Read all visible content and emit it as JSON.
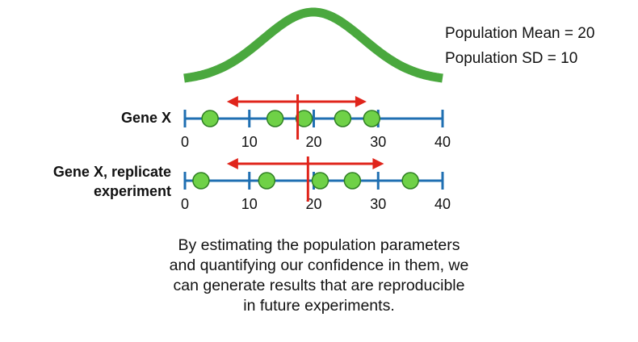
{
  "stats": {
    "mean_label": "Population Mean = 20",
    "sd_label": "Population SD = 10"
  },
  "rows": [
    {
      "label_lines": [
        "Gene X"
      ],
      "tick_labels": [
        "0",
        "10",
        "20",
        "30",
        "40"
      ],
      "points": [
        3.9,
        14,
        18.5,
        24.5,
        29
      ],
      "estimated_mean": 17.5,
      "interval": [
        6.5,
        28.2
      ]
    },
    {
      "label_lines": [
        "Gene X, replicate",
        "experiment"
      ],
      "tick_labels": [
        "0",
        "10",
        "20",
        "30",
        "40"
      ],
      "points": [
        2.5,
        12.7,
        21,
        26,
        35
      ],
      "estimated_mean": 19.1,
      "interval": [
        6.5,
        30.9
      ]
    }
  ],
  "caption_lines": [
    "By estimating the population parameters",
    "and quantifying our confidence in them, we",
    "can generate results that are reproducible",
    "in future experiments."
  ],
  "colors": {
    "curve": "#4aa83e",
    "axis": "#1f6fb2",
    "point_fill": "#6fd147",
    "point_stroke": "#2f7f23",
    "interval": "#e0241b",
    "text": "#111111"
  }
}
